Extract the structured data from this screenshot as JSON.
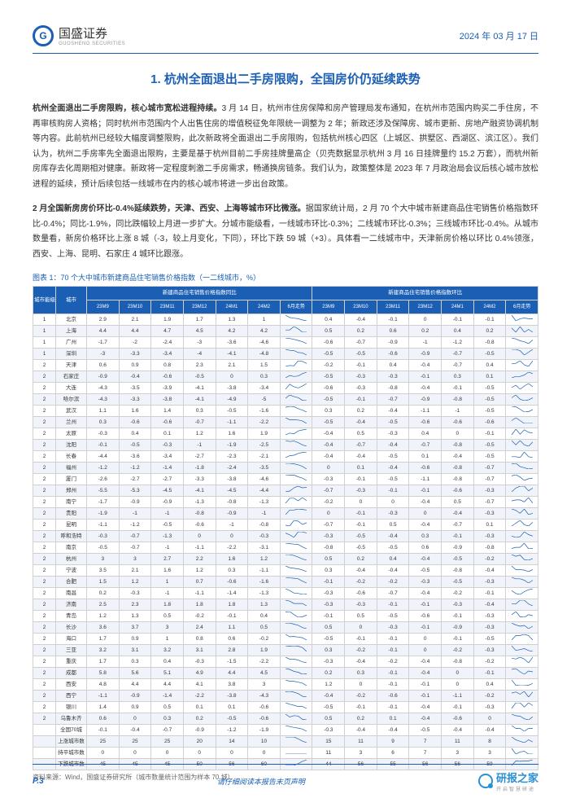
{
  "header": {
    "logo_main": "国盛证券",
    "logo_sub": "GUOSHENG SECURITIES",
    "date": "2024 年 03 月 17 日"
  },
  "title": "1. 杭州全面退出二手房限购，全国房价仍延续跌势",
  "para1_bold": "杭州全面退出二手房限购，核心城市宽松进程持续。",
  "para1": "3 月 14 日，杭州市住房保障和房产管理局发布通知，在杭州市范围内购买二手住房，不再审核购房人资格；同时杭州市范围内个人出售住房的增值税征免年限统一调整为 2 年；新政还涉及保障房、城市更新、房地产融资协调机制等内容。此前杭州已经较大幅度调整限购，此次新政将全面退出二手房限购，包括杭州核心四区（上城区、拱墅区、西湖区、滨江区）。我们认为，杭州二手房率先全面退出限购，主要是基于杭州目前二手房挂牌量高企（贝壳数据显示杭州 3 月 16 日挂牌量约 15.2 万套），而杭州新房库存去化周期相对健康。新政将一定程度刺激二手房需求，畅通换房链条。我们认为，政策整体是 2023 年 7 月政治局会议后核心城市放松进程的延续，预计后续包括一线城市在内的核心城市将进一步出台政策。",
  "para2_bold": "2 月全国新房房价环比-0.4%延续跌势，天津、西安、上海等城市环比微涨。",
  "para2": "据国家统计局，2 月 70 个大中城市新建商品住宅销售价格指数环比-0.4%；同比-1.9%，同比跌幅较上月进一步扩大。分城市能级看，一线城市环比-0.3%；二线城市环比-0.3%；三线城市环比-0.4%。从城市数量看，新房价格环比上涨 8 城（-3，较上月变化，下同），环比下跌 59 城（+3）。具体看一二线城市中，天津新房价格以环比 0.4%领涨，西安、上海、昆明、石家庄 4 城环比跟涨。",
  "chart_caption": "图表 1：70 个大中城市新建商品住宅销售价格指数（一二线城市，%）",
  "table": {
    "group_headers": [
      "城市能级",
      "城市",
      "新建商品住宅销售价格指数同比",
      "新建商品住宅销售价格指数环比"
    ],
    "sub_headers": [
      "23M9",
      "23M10",
      "23M11",
      "23M12",
      "24M1",
      "24M2",
      "6月走势",
      "23M9",
      "23M10",
      "23M11",
      "23M12",
      "24M1",
      "24M2",
      "6月走势"
    ],
    "rows": [
      {
        "tier": "1",
        "city": "北京",
        "yoy": [
          "2.9",
          "2.1",
          "1.9",
          "1.7",
          "1.3",
          "1"
        ],
        "mom": [
          "0.4",
          "-0.4",
          "-0.1",
          "0",
          "-0.1",
          "-0.1"
        ]
      },
      {
        "tier": "1",
        "city": "上海",
        "yoy": [
          "4.4",
          "4.4",
          "4.7",
          "4.5",
          "4.2",
          "4.2"
        ],
        "mom": [
          "0.5",
          "0.2",
          "0.6",
          "0.2",
          "0.4",
          "0.2"
        ]
      },
      {
        "tier": "1",
        "city": "广州",
        "yoy": [
          "-1.7",
          "-2",
          "-2.4",
          "-3",
          "-3.6",
          "-4.6"
        ],
        "mom": [
          "-0.6",
          "-0.7",
          "-0.9",
          "-1",
          "-1.2",
          "-0.8"
        ]
      },
      {
        "tier": "1",
        "city": "深圳",
        "yoy": [
          "-3",
          "-3.3",
          "-3.4",
          "-4",
          "-4.1",
          "-4.8"
        ],
        "mom": [
          "-0.5",
          "-0.5",
          "-0.6",
          "-0.9",
          "-0.7",
          "-0.5"
        ]
      },
      {
        "tier": "2",
        "city": "天津",
        "yoy": [
          "0.6",
          "0.9",
          "0.8",
          "2.3",
          "2.1",
          "1.5"
        ],
        "mom": [
          "-0.2",
          "-0.1",
          "0.4",
          "-0.4",
          "-0.7",
          "0.4"
        ]
      },
      {
        "tier": "2",
        "city": "石家庄",
        "yoy": [
          "-0.9",
          "-0.4",
          "-0.6",
          "-0.5",
          "0",
          "0.3"
        ],
        "mom": [
          "-0.5",
          "-0.3",
          "-0.3",
          "-0.1",
          "0.3",
          "0.1"
        ]
      },
      {
        "tier": "2",
        "city": "大连",
        "yoy": [
          "-4.3",
          "-3.5",
          "-3.9",
          "-4.1",
          "-3.8",
          "-3.4"
        ],
        "mom": [
          "-0.6",
          "-0.3",
          "-0.8",
          "-0.4",
          "-0.1",
          "-0.5"
        ]
      },
      {
        "tier": "2",
        "city": "哈尔滨",
        "yoy": [
          "-4.3",
          "-3.3",
          "-3.8",
          "-4.1",
          "-4.9",
          "-5"
        ],
        "mom": [
          "-0.5",
          "-0.1",
          "-0.7",
          "-0.9",
          "-0.8",
          "-0.5"
        ]
      },
      {
        "tier": "2",
        "city": "武汉",
        "yoy": [
          "1.1",
          "1.6",
          "1.4",
          "0.3",
          "-0.5",
          "-1.6"
        ],
        "mom": [
          "0.3",
          "0.2",
          "-0.4",
          "-1.1",
          "-1",
          "-0.5"
        ]
      },
      {
        "tier": "2",
        "city": "兰州",
        "yoy": [
          "0.3",
          "-0.6",
          "-0.6",
          "-0.7",
          "-1.1",
          "-2.2"
        ],
        "mom": [
          "-0.5",
          "-0.4",
          "-0.5",
          "-0.6",
          "-0.6",
          "-0.6"
        ]
      },
      {
        "tier": "2",
        "city": "太原",
        "yoy": [
          "-0.3",
          "0.4",
          "0.1",
          "1.2",
          "1.6",
          "1.9"
        ],
        "mom": [
          "-0.4",
          "0.5",
          "-0.3",
          "0.4",
          "0",
          "-0.1"
        ]
      },
      {
        "tier": "2",
        "city": "沈阳",
        "yoy": [
          "-0.1",
          "-0.5",
          "-0.3",
          "-1",
          "-1.9",
          "-2.5"
        ],
        "mom": [
          "-0.4",
          "-0.7",
          "-0.4",
          "-0.7",
          "-0.8",
          "-0.5"
        ]
      },
      {
        "tier": "2",
        "city": "长春",
        "yoy": [
          "-4.4",
          "-3.6",
          "-3.4",
          "-2.7",
          "-2.3",
          "-2.1"
        ],
        "mom": [
          "-0.4",
          "-0.4",
          "-0.5",
          "0.1",
          "-0.4",
          "-0.5"
        ]
      },
      {
        "tier": "2",
        "city": "福州",
        "yoy": [
          "-1.2",
          "-1.2",
          "-1.4",
          "-1.8",
          "-2.4",
          "-3.5"
        ],
        "mom": [
          "0",
          "0.1",
          "-0.4",
          "-0.6",
          "-0.8",
          "-0.7"
        ]
      },
      {
        "tier": "2",
        "city": "厦门",
        "yoy": [
          "-2.6",
          "-2.7",
          "-2.7",
          "-3.3",
          "-3.8",
          "-4.6"
        ],
        "mom": [
          "-0.3",
          "-0.1",
          "-0.5",
          "-1.1",
          "-0.8",
          "-0.7"
        ]
      },
      {
        "tier": "2",
        "city": "郑州",
        "yoy": [
          "-5.5",
          "-5.3",
          "-4.5",
          "-4.1",
          "-4.5",
          "-4.4"
        ],
        "mom": [
          "-0.7",
          "-0.3",
          "-0.1",
          "-0.1",
          "-0.6",
          "-0.3"
        ]
      },
      {
        "tier": "2",
        "city": "南宁",
        "yoy": [
          "-1.7",
          "-0.9",
          "-0.9",
          "-1.3",
          "-0.8",
          "-1.3"
        ],
        "mom": [
          "-0.2",
          "0",
          "0",
          "-0.4",
          "0.5",
          "-0.7"
        ]
      },
      {
        "tier": "2",
        "city": "贵阳",
        "yoy": [
          "-1.9",
          "-1",
          "-1",
          "-0.8",
          "-0.9",
          "-1"
        ],
        "mom": [
          "0",
          "-0.1",
          "-0.3",
          "0",
          "-0.4",
          "-0.3"
        ]
      },
      {
        "tier": "2",
        "city": "昆明",
        "yoy": [
          "-1.1",
          "-1.2",
          "-0.5",
          "-0.6",
          "-1",
          "-0.8"
        ],
        "mom": [
          "-0.7",
          "-0.1",
          "0.5",
          "-0.4",
          "-0.7",
          "0.1"
        ]
      },
      {
        "tier": "2",
        "city": "呼和浩特",
        "yoy": [
          "-0.3",
          "-0.7",
          "-1.3",
          "0",
          "0",
          "-0.3"
        ],
        "mom": [
          "-0.3",
          "-0.5",
          "-0.4",
          "0.3",
          "-0.1",
          "-0.3"
        ]
      },
      {
        "tier": "2",
        "city": "南京",
        "yoy": [
          "-0.5",
          "-0.7",
          "-1",
          "-1.1",
          "-2.2",
          "-3.1"
        ],
        "mom": [
          "-0.8",
          "-0.5",
          "-0.5",
          "0.6",
          "-0.9",
          "-0.8"
        ]
      },
      {
        "tier": "2",
        "city": "杭州",
        "yoy": [
          "3",
          "3",
          "2.7",
          "2.2",
          "1.6",
          "1.2"
        ],
        "mom": [
          "0.5",
          "0.2",
          "0.4",
          "-0.4",
          "-0.5",
          "-0.2"
        ]
      },
      {
        "tier": "2",
        "city": "宁波",
        "yoy": [
          "3.5",
          "2.1",
          "1.6",
          "1.2",
          "0.3",
          "-1.1"
        ],
        "mom": [
          "0.3",
          "-0.4",
          "-0.4",
          "-0.5",
          "-0.8",
          "-0.4"
        ]
      },
      {
        "tier": "2",
        "city": "合肥",
        "yoy": [
          "1.5",
          "1.2",
          "1",
          "0.7",
          "-0.6",
          "-1.6"
        ],
        "mom": [
          "-0.1",
          "-0.2",
          "-0.2",
          "-0.3",
          "-0.5",
          "-0.3"
        ]
      },
      {
        "tier": "2",
        "city": "南昌",
        "yoy": [
          "0.2",
          "-0.3",
          "-1",
          "-1.1",
          "-1.4",
          "-1.3"
        ],
        "mom": [
          "-0.3",
          "-0.6",
          "-0.7",
          "-0.4",
          "-0.2",
          "-0.1"
        ]
      },
      {
        "tier": "2",
        "city": "济南",
        "yoy": [
          "2.5",
          "2.3",
          "1.8",
          "1.8",
          "1.8",
          "1.3"
        ],
        "mom": [
          "-0.3",
          "-0.3",
          "-0.1",
          "-0.1",
          "-0.3",
          "-0.4"
        ]
      },
      {
        "tier": "2",
        "city": "青岛",
        "yoy": [
          "1.2",
          "1.3",
          "0.5",
          "-0.2",
          "-0.1",
          "0.4"
        ],
        "mom": [
          "-0.1",
          "0.5",
          "-0.5",
          "-0.6",
          "-0.1",
          "-0.3"
        ]
      },
      {
        "tier": "2",
        "city": "长沙",
        "yoy": [
          "3.6",
          "3.7",
          "3",
          "2.4",
          "1.1",
          "0.5"
        ],
        "mom": [
          "0.5",
          "0",
          "-0.3",
          "-0.1",
          "-0.9",
          "-0.3"
        ]
      },
      {
        "tier": "2",
        "city": "海口",
        "yoy": [
          "1.7",
          "0.9",
          "1",
          "0.8",
          "0.6",
          "-0.2"
        ],
        "mom": [
          "-0.5",
          "-0.1",
          "-0.1",
          "0",
          "-0.1",
          "-0.5"
        ]
      },
      {
        "tier": "2",
        "city": "三亚",
        "yoy": [
          "3.2",
          "3.1",
          "3.2",
          "3.1",
          "2.8",
          "1.9"
        ],
        "mom": [
          "0.3",
          "-0.2",
          "-0.1",
          "0",
          "-0.2",
          "-0.3"
        ]
      },
      {
        "tier": "2",
        "city": "重庆",
        "yoy": [
          "1.7",
          "0.3",
          "0.4",
          "-0.3",
          "-1.5",
          "-2.2"
        ],
        "mom": [
          "-0.3",
          "-0.4",
          "-0.2",
          "-0.4",
          "-0.8",
          "-0.2"
        ]
      },
      {
        "tier": "2",
        "city": "成都",
        "yoy": [
          "5.8",
          "5.6",
          "5.1",
          "4.9",
          "4.4",
          "4.5"
        ],
        "mom": [
          "0.2",
          "0.3",
          "-0.1",
          "-0.4",
          "0",
          "-0.1"
        ]
      },
      {
        "tier": "2",
        "city": "西安",
        "yoy": [
          "4.8",
          "4.4",
          "4.4",
          "4.1",
          "3.8",
          "3"
        ],
        "mom": [
          "1.2",
          "0",
          "-0.1",
          "-0.1",
          "0",
          "0.4"
        ]
      },
      {
        "tier": "2",
        "city": "西宁",
        "yoy": [
          "-1.1",
          "-0.9",
          "-1.4",
          "-2.2",
          "-3.8",
          "-4.3"
        ],
        "mom": [
          "-0.4",
          "-0.2",
          "-0.6",
          "-0.1",
          "-1.1",
          "-0.2"
        ]
      },
      {
        "tier": "2",
        "city": "银川",
        "yoy": [
          "1.4",
          "0.9",
          "0.5",
          "0.1",
          "0.1",
          "-0.6"
        ],
        "mom": [
          "-0.5",
          "-0.1",
          "-0.1",
          "-0.4",
          "-0.1",
          "-0.3"
        ]
      },
      {
        "tier": "2",
        "city": "乌鲁木齐",
        "yoy": [
          "0.6",
          "0",
          "0.3",
          "0.2",
          "-0.5",
          "-0.6"
        ],
        "mom": [
          "0.5",
          "0.2",
          "0.1",
          "-0.4",
          "-0.6",
          "0"
        ]
      },
      {
        "tier": "",
        "city": "全国70城",
        "yoy": [
          "-0.1",
          "-0.4",
          "-0.7",
          "-0.9",
          "-1.2",
          "-1.9"
        ],
        "mom": [
          "-0.3",
          "-0.4",
          "-0.4",
          "-0.5",
          "-0.4",
          "-0.4"
        ]
      },
      {
        "tier": "",
        "city": "上涨城市数",
        "yoy": [
          "25",
          "25",
          "25",
          "20",
          "14",
          "10"
        ],
        "mom": [
          "15",
          "11",
          "9",
          "7",
          "11",
          "8"
        ]
      },
      {
        "tier": "",
        "city": "持平城市数",
        "yoy": [
          "0",
          "0",
          "0",
          "0",
          "0",
          "0"
        ],
        "mom": [
          "11",
          "3",
          "6",
          "7",
          "3",
          "3"
        ]
      },
      {
        "tier": "",
        "city": "下跌城市数",
        "yoy": [
          "45",
          "45",
          "45",
          "50",
          "56",
          "60"
        ],
        "mom": [
          "44",
          "56",
          "55",
          "56",
          "56",
          "59"
        ]
      }
    ]
  },
  "source": "资料来源：Wind，国盛证券研究所（城市数量统计范围为样本 70 城）",
  "footer": {
    "page": "P.3",
    "disclaimer": "请仔细阅读本报告末页声明",
    "brand": "研报之家",
    "brand_sub": "开启智慧研途"
  },
  "colors": {
    "primary": "#1a5fb4",
    "band_even": "#f0f4fa",
    "brand_blue": "#2a8fd4"
  }
}
